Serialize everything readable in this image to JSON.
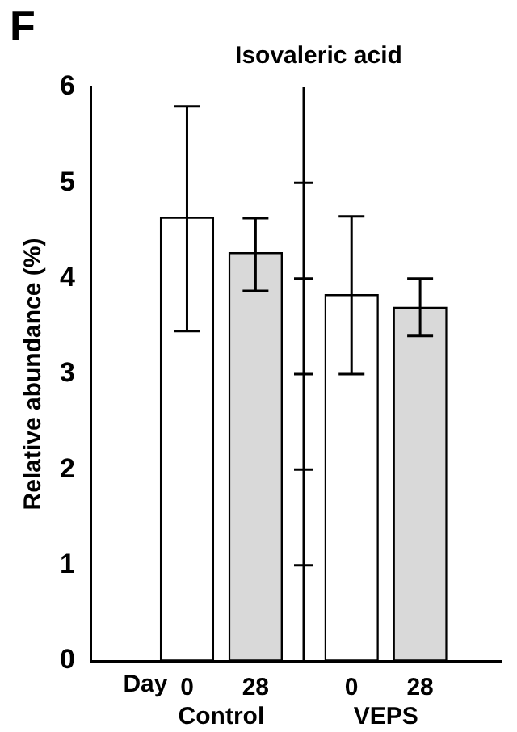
{
  "chart_data": {
    "type": "bar",
    "title": "Isovaleric acid",
    "ylabel": "Relative abundance (%)",
    "categories": [
      "0",
      "28",
      "0",
      "28"
    ],
    "values": [
      4.64,
      4.27,
      3.83,
      3.7
    ],
    "colors": [
      "#ffffff",
      "#d9d9d9",
      "#ffffff",
      "#d9d9d9"
    ],
    "errors": [
      [
        3.45,
        5.8
      ],
      [
        3.87,
        4.63
      ],
      [
        3.0,
        4.65
      ],
      [
        3.4,
        4.0
      ]
    ],
    "ylim": [
      0,
      6
    ],
    "yticks": [
      0,
      1,
      2,
      3,
      4,
      5,
      6
    ],
    "grid": false,
    "legend": false,
    "annotations": [
      "F",
      "Day",
      "Control",
      "VEPS"
    ]
  }
}
